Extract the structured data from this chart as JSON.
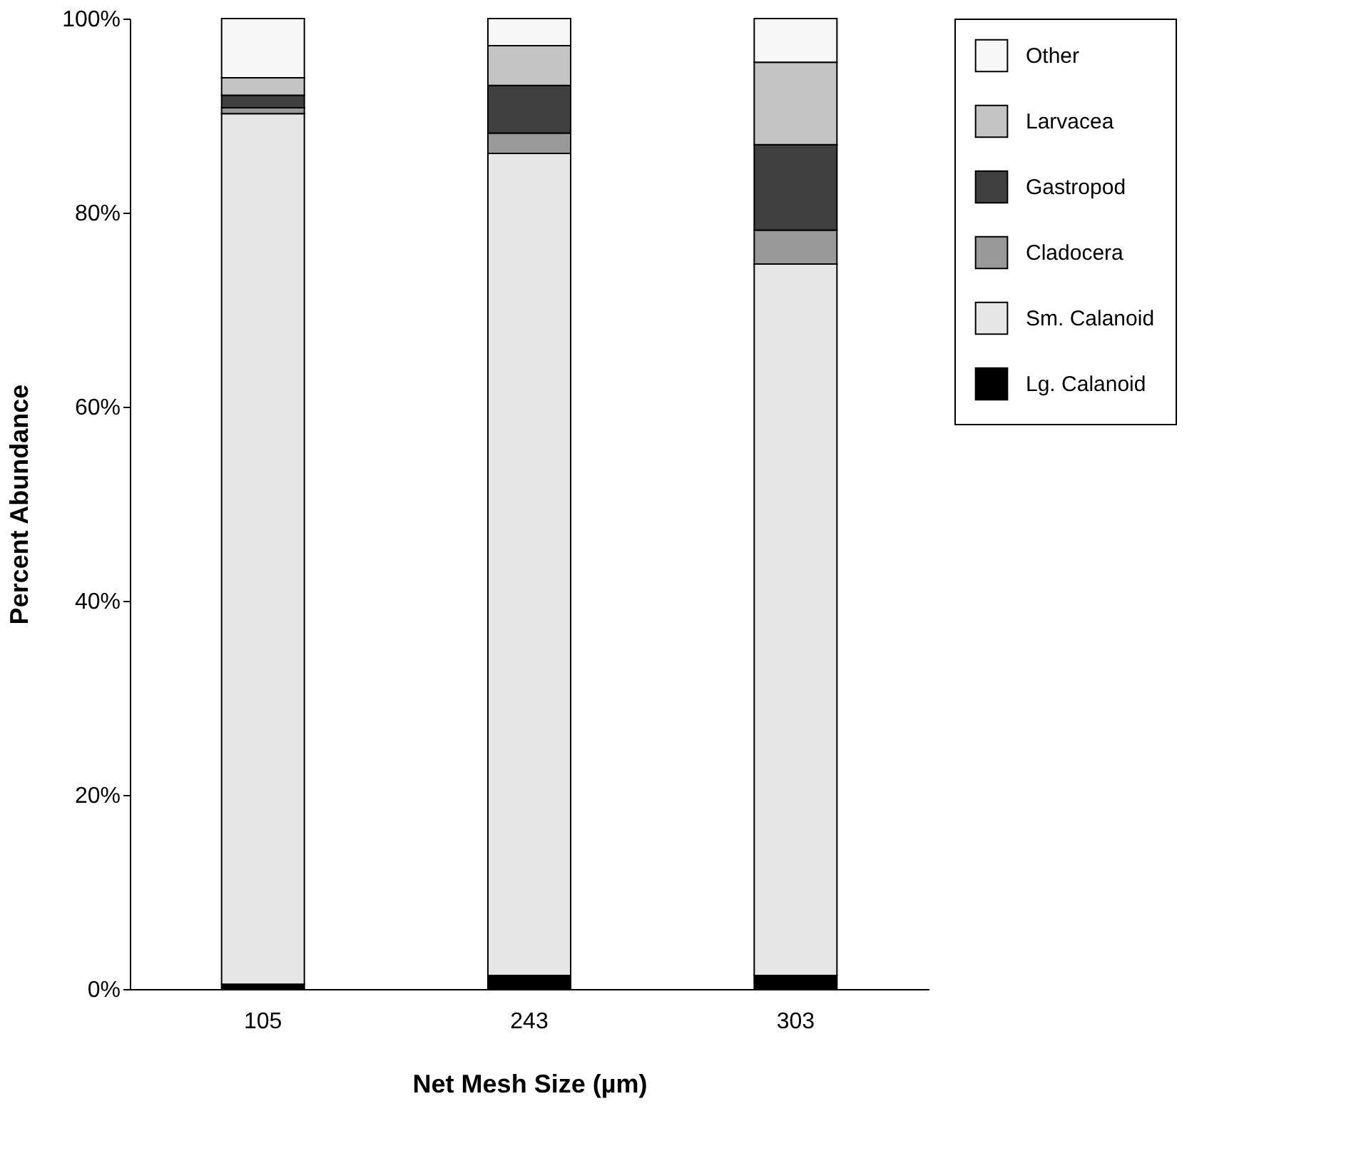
{
  "chart_data": {
    "type": "bar",
    "stacked": true,
    "xlabel": "Net Mesh Size (µm)",
    "ylabel": "Percent Abundance",
    "categories": [
      "105",
      "243",
      "303"
    ],
    "series": [
      {
        "name": "Lg. Calanoid",
        "color": "#000000",
        "values": [
          0.5,
          1.4,
          1.4
        ]
      },
      {
        "name": "Sm. Calanoid",
        "color": "#e6e6e6",
        "values": [
          89.7,
          84.7,
          73.3
        ]
      },
      {
        "name": "Cladocera",
        "color": "#999999",
        "values": [
          0.6,
          2.1,
          3.5
        ]
      },
      {
        "name": "Gastropod",
        "color": "#404040",
        "values": [
          1.3,
          4.9,
          8.8
        ]
      },
      {
        "name": "Larvacea",
        "color": "#c4c4c4",
        "values": [
          1.8,
          4.1,
          8.5
        ]
      },
      {
        "name": "Other",
        "color": "#f7f7f7",
        "values": [
          6.1,
          2.8,
          4.5
        ]
      }
    ],
    "ylim": [
      0,
      100
    ],
    "yticks": [
      {
        "value": 0,
        "label": "0%"
      },
      {
        "value": 20,
        "label": "20%"
      },
      {
        "value": 40,
        "label": "40%"
      },
      {
        "value": 60,
        "label": "60%"
      },
      {
        "value": 80,
        "label": "80%"
      },
      {
        "value": 100,
        "label": "100%"
      }
    ],
    "grid": false,
    "legend": "right"
  }
}
